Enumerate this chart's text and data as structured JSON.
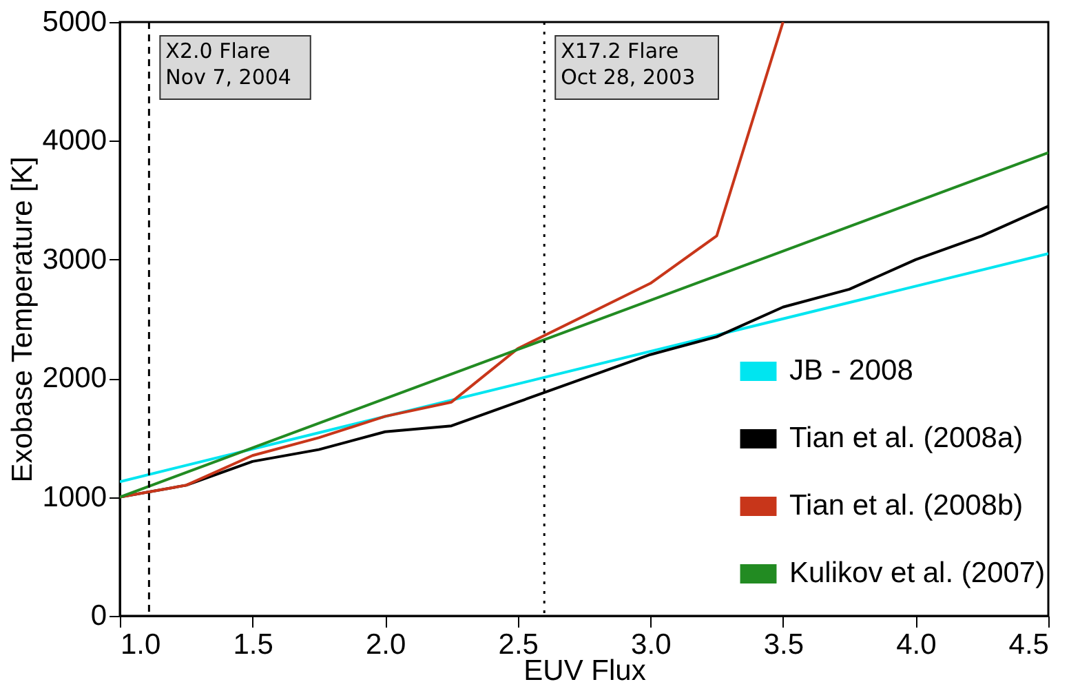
{
  "chart_data": {
    "type": "line",
    "xlabel": "EUV Flux",
    "ylabel": "Exobase Temperature [K]",
    "xlim": [
      1.0,
      4.5
    ],
    "xticks": [
      {
        "value": 1.0,
        "label": "1.0"
      },
      {
        "value": 1.5,
        "label": "1.5"
      },
      {
        "value": 2.0,
        "label": "2.0"
      },
      {
        "value": 2.5,
        "label": "2.5"
      },
      {
        "value": 3.0,
        "label": "3.0"
      },
      {
        "value": 3.5,
        "label": "3.5"
      },
      {
        "value": 4.0,
        "label": "4.0"
      },
      {
        "value": 4.5,
        "label": "4.5"
      }
    ],
    "ylim": [
      0,
      5000
    ],
    "yticks": [
      0,
      1000,
      2000,
      3000,
      4000,
      5000
    ],
    "grid": false,
    "legend": "bottom right",
    "series": [
      {
        "name": "JB - 2008",
        "color": "#00e5f0",
        "x": [
          1.0,
          4.5
        ],
        "values": [
          1130,
          3050
        ]
      },
      {
        "name": "Tian et al. (2008a)",
        "color": "#000000",
        "x": [
          1.0,
          1.25,
          1.5,
          1.75,
          2.0,
          2.25,
          2.5,
          2.75,
          3.0,
          3.25,
          3.5,
          3.75,
          4.0,
          4.25,
          4.5
        ],
        "values": [
          1000,
          1100,
          1300,
          1400,
          1550,
          1600,
          1800,
          2000,
          2200,
          2350,
          2600,
          2750,
          3000,
          3200,
          3450
        ]
      },
      {
        "name": "Tian et al. (2008b)",
        "color": "#c8361a",
        "x": [
          1.0,
          1.25,
          1.5,
          1.75,
          2.0,
          2.25,
          2.5,
          3.0,
          3.25,
          3.5
        ],
        "values": [
          1000,
          1100,
          1350,
          1500,
          1680,
          1800,
          2250,
          2800,
          3200,
          5000
        ]
      },
      {
        "name": "Kulikov et al. (2007)",
        "color": "#228b22",
        "x": [
          1.0,
          4.5
        ],
        "values": [
          1000,
          3900
        ]
      }
    ],
    "ref_lines": [
      {
        "axis": "x",
        "value": 1.11,
        "label": "X2.0 Flare\nNov 7, 2004",
        "color": "#000000",
        "line_style": "dashed"
      },
      {
        "axis": "x",
        "value": 2.6,
        "label": "X17.2 Flare\nOct 28, 2003",
        "color": "#000000",
        "line_style": "dotted"
      }
    ]
  }
}
